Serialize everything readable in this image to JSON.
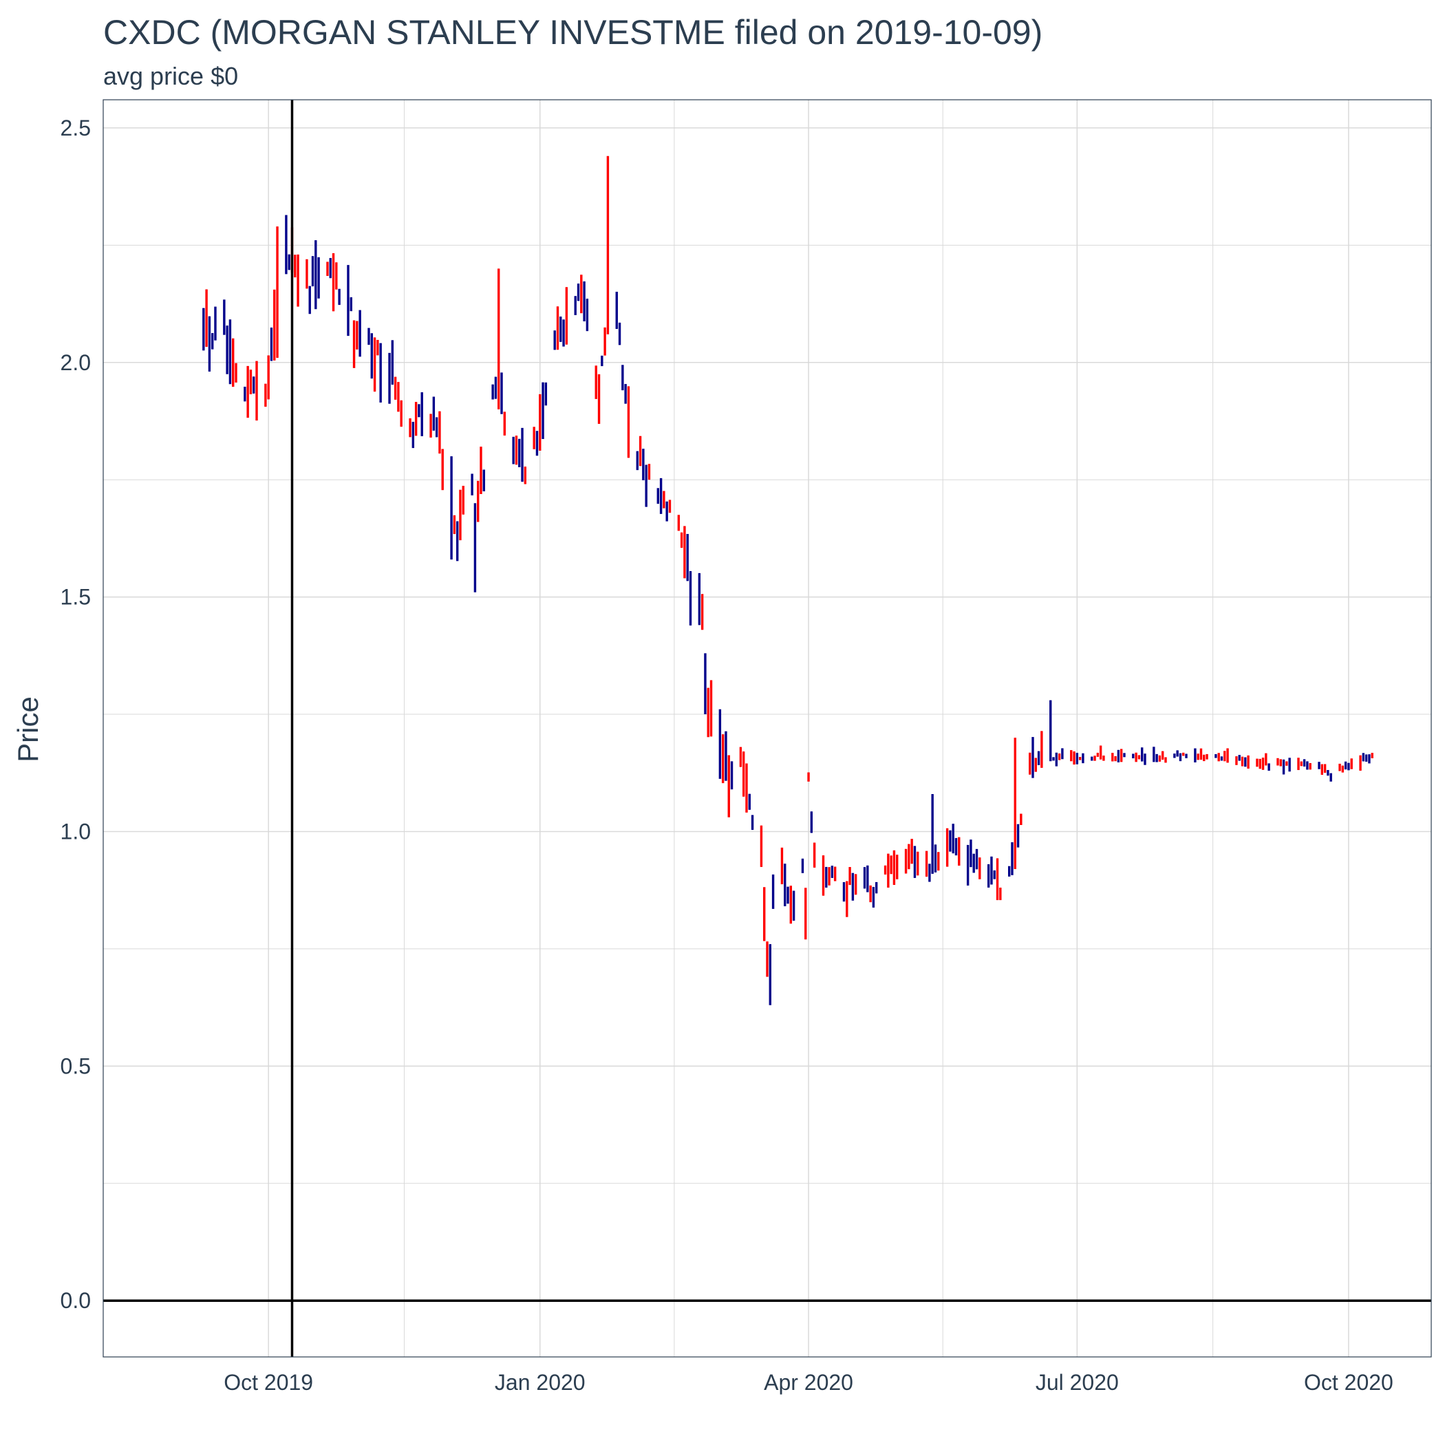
{
  "chart_data": {
    "type": "ohlc",
    "title": "CXDC (MORGAN STANLEY INVESTME filed on 2019-10-09)",
    "subtitle": "avg price $0",
    "ylabel": "Price",
    "xlabel": "",
    "ylim": [
      -0.12,
      2.56
    ],
    "xlim": [
      "2019-08-06",
      "2020-10-29"
    ],
    "y_ticks": [
      {
        "value": 0,
        "label": "0.0"
      },
      {
        "value": 0.5,
        "label": "0.5"
      },
      {
        "value": 1.0,
        "label": "1.0"
      },
      {
        "value": 1.5,
        "label": "1.5"
      },
      {
        "value": 2.0,
        "label": "2.0"
      },
      {
        "value": 2.5,
        "label": "2.5"
      }
    ],
    "y_minor_ticks": [
      0.25,
      0.75,
      1.25,
      1.75,
      2.25
    ],
    "x_ticks": [
      {
        "date": "2019-10-01",
        "label": "Oct 2019"
      },
      {
        "date": "2020-01-01",
        "label": "Jan 2020"
      },
      {
        "date": "2020-04-01",
        "label": "Apr 2020"
      },
      {
        "date": "2020-07-01",
        "label": "Jul 2020"
      },
      {
        "date": "2020-10-01",
        "label": "Oct 2020"
      }
    ],
    "vline_date": "2019-10-09",
    "hline_value": 0,
    "grid": true,
    "colors": {
      "up": "#00008b",
      "down": "#ff0000",
      "grid": "#d9d9d9",
      "frame": "#2c3e50",
      "ref": "#000000"
    },
    "trading_start": "2019-09-09",
    "trading_end": "2020-10-09",
    "anchors": [
      [
        "2019-09-09",
        2.07
      ],
      [
        "2019-09-11",
        2.05
      ],
      [
        "2019-09-16",
        2.08
      ],
      [
        "2019-09-18",
        2.04
      ],
      [
        "2019-09-23",
        1.96
      ],
      [
        "2019-09-25",
        1.95
      ],
      [
        "2019-09-30",
        1.93
      ],
      [
        "2019-10-02",
        2.02
      ],
      [
        "2019-10-04",
        2.15
      ],
      [
        "2019-10-07",
        2.24
      ],
      [
        "2019-10-10",
        2.22
      ],
      [
        "2019-10-14",
        2.16
      ],
      [
        "2019-10-18",
        2.19
      ],
      [
        "2019-10-23",
        2.18
      ],
      [
        "2019-10-28",
        2.15
      ],
      [
        "2019-10-31",
        2.04
      ],
      [
        "2019-11-04",
        2.03
      ],
      [
        "2019-11-08",
        2.0
      ],
      [
        "2019-11-12",
        1.98
      ],
      [
        "2019-11-15",
        1.9
      ],
      [
        "2019-11-19",
        1.87
      ],
      [
        "2019-11-25",
        1.88
      ],
      [
        "2019-11-28",
        1.85
      ],
      [
        "2019-12-02",
        1.7
      ],
      [
        "2019-12-04",
        1.66
      ],
      [
        "2019-12-09",
        1.72
      ],
      [
        "2019-12-13",
        1.75
      ],
      [
        "2019-12-16",
        1.96
      ],
      [
        "2019-12-18",
        1.98
      ],
      [
        "2019-12-20",
        1.88
      ],
      [
        "2019-12-24",
        1.8
      ],
      [
        "2019-12-27",
        1.78
      ],
      [
        "2020-01-02",
        1.9
      ],
      [
        "2020-01-06",
        2.05
      ],
      [
        "2020-01-10",
        2.1
      ],
      [
        "2020-01-14",
        2.12
      ],
      [
        "2020-01-17",
        2.1
      ],
      [
        "2020-01-21",
        1.92
      ],
      [
        "2020-01-24",
        2.15
      ],
      [
        "2020-01-28",
        2.05
      ],
      [
        "2020-01-31",
        1.85
      ],
      [
        "2020-02-04",
        1.8
      ],
      [
        "2020-02-07",
        1.75
      ],
      [
        "2020-02-12",
        1.72
      ],
      [
        "2020-02-18",
        1.62
      ],
      [
        "2020-02-21",
        1.52
      ],
      [
        "2020-02-25",
        1.45
      ],
      [
        "2020-02-26",
        1.3
      ],
      [
        "2020-03-02",
        1.18
      ],
      [
        "2020-03-05",
        1.12
      ],
      [
        "2020-03-09",
        1.15
      ],
      [
        "2020-03-12",
        1.05
      ],
      [
        "2020-03-16",
        0.95
      ],
      [
        "2020-03-18",
        0.75
      ],
      [
        "2020-03-20",
        0.86
      ],
      [
        "2020-03-24",
        0.9
      ],
      [
        "2020-03-26",
        0.82
      ],
      [
        "2020-03-30",
        0.92
      ],
      [
        "2020-04-01",
        1.1
      ],
      [
        "2020-04-03",
        0.95
      ],
      [
        "2020-04-08",
        0.9
      ],
      [
        "2020-04-14",
        0.88
      ],
      [
        "2020-04-20",
        0.9
      ],
      [
        "2020-04-24",
        0.87
      ],
      [
        "2020-04-29",
        0.93
      ],
      [
        "2020-05-05",
        0.95
      ],
      [
        "2020-05-11",
        0.92
      ],
      [
        "2020-05-15",
        0.95
      ],
      [
        "2020-05-20",
        0.97
      ],
      [
        "2020-05-26",
        0.93
      ],
      [
        "2020-06-01",
        0.91
      ],
      [
        "2020-06-05",
        0.88
      ],
      [
        "2020-06-10",
        0.93
      ],
      [
        "2020-06-15",
        1.15
      ],
      [
        "2020-06-22",
        1.16
      ],
      [
        "2020-06-26",
        1.16
      ],
      [
        "2020-07-15",
        1.16
      ],
      [
        "2020-08-01",
        1.16
      ],
      [
        "2020-08-20",
        1.16
      ],
      [
        "2020-09-10",
        1.14
      ],
      [
        "2020-09-20",
        1.14
      ],
      [
        "2020-09-25",
        1.12
      ],
      [
        "2020-09-29",
        1.14
      ],
      [
        "2020-10-09",
        1.16
      ]
    ],
    "spikes": [
      {
        "date": "2020-01-24",
        "high": 2.44,
        "low": 2.06
      },
      {
        "date": "2019-10-04",
        "high": 2.29,
        "low": 2.01
      },
      {
        "date": "2019-12-18",
        "high": 2.2,
        "low": 1.9
      },
      {
        "date": "2019-12-10",
        "high": 1.7,
        "low": 1.51
      },
      {
        "date": "2019-12-02",
        "high": 1.8,
        "low": 1.58
      },
      {
        "date": "2020-03-19",
        "high": 0.76,
        "low": 0.63
      },
      {
        "date": "2020-03-31",
        "high": 0.88,
        "low": 0.77
      },
      {
        "date": "2020-06-22",
        "high": 1.28,
        "low": 1.15
      },
      {
        "date": "2020-06-10",
        "high": 1.2,
        "low": 0.92
      },
      {
        "date": "2020-05-13",
        "high": 1.08,
        "low": 0.91
      },
      {
        "date": "2020-02-26",
        "high": 1.38,
        "low": 1.25
      }
    ]
  }
}
